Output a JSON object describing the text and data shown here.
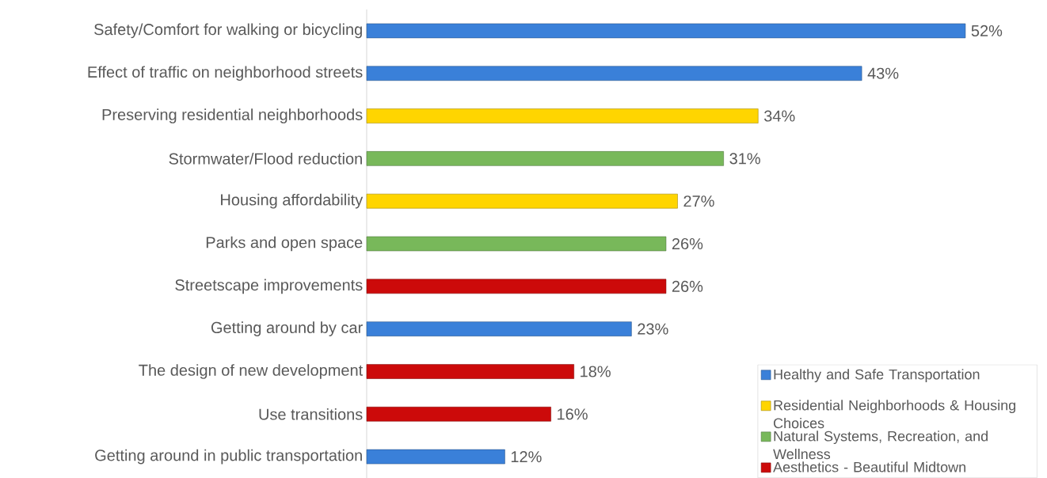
{
  "chart_data": {
    "type": "bar",
    "orientation": "horizontal",
    "legend": "bottom right",
    "categories": [
      "Safety/Comfort for walking or bicycling",
      "Effect of traffic on neighborhood streets",
      "Preserving residential neighborhoods",
      "Stormwater/Flood reduction",
      "Housing affordability",
      "Parks and open space",
      "Streetscape improvements",
      "Getting around by car",
      "The design of new development",
      "Use transitions",
      "Getting around in public transportation"
    ],
    "series": [
      {
        "name": "Healthy and Safe Transportation",
        "color": "#3a80d9",
        "values": [
          52,
          43,
          null,
          null,
          null,
          null,
          null,
          23,
          null,
          null,
          12
        ],
        "value_labels": [
          "52%",
          "43%",
          null,
          null,
          null,
          null,
          null,
          "23%",
          null,
          null,
          "12%"
        ]
      },
      {
        "name": "Residential Neighborhoods & Housing Choices",
        "color": "#ffd500",
        "values": [
          null,
          null,
          34,
          null,
          27,
          null,
          null,
          null,
          null,
          null,
          null
        ],
        "value_labels": [
          null,
          null,
          "34%",
          null,
          "27%",
          null,
          null,
          null,
          null,
          null,
          null
        ]
      },
      {
        "name": "Natural Systems, Recreation, and Wellness",
        "color": "#78b85a",
        "values": [
          null,
          null,
          null,
          31,
          null,
          26,
          null,
          null,
          null,
          null,
          null
        ],
        "value_labels": [
          null,
          null,
          null,
          "31%",
          null,
          "26%",
          null,
          null,
          null,
          null,
          null
        ]
      },
      {
        "name": "Aesthetics - Beautiful Midtown",
        "color": "#cc0a0a",
        "values": [
          null,
          null,
          null,
          null,
          null,
          null,
          26,
          null,
          18,
          16,
          null
        ],
        "value_labels": [
          null,
          null,
          null,
          null,
          null,
          null,
          "26%",
          null,
          "18%",
          "16%",
          null
        ]
      }
    ]
  }
}
